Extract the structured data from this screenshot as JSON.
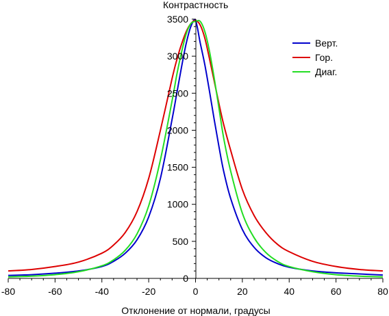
{
  "chart_data": {
    "type": "line",
    "title": "",
    "xlabel": "Отклонение от нормали, градусы",
    "ylabel": "Контрастность",
    "xlim": [
      -80,
      80
    ],
    "ylim": [
      0,
      3500
    ],
    "xticks": [
      "-80",
      "-60",
      "-40",
      "-20",
      "0",
      "20",
      "40",
      "60",
      "80"
    ],
    "yticks": [
      "0",
      "500",
      "1000",
      "1500",
      "2000",
      "2500",
      "3000",
      "3500"
    ],
    "grid": false,
    "legend": "top-right",
    "series": [
      {
        "name": "Верт.",
        "color": "#0000cc",
        "x": [
          -80,
          -70,
          -60,
          -50,
          -40,
          -35,
          -30,
          -25,
          -20,
          -15,
          -10,
          -8,
          -6,
          -4,
          -2,
          0,
          2,
          4,
          6,
          8,
          10,
          12,
          15,
          20,
          25,
          30,
          35,
          40,
          50,
          60,
          70,
          80
        ],
        "y": [
          40,
          50,
          70,
          100,
          160,
          230,
          340,
          520,
          830,
          1350,
          2150,
          2500,
          2850,
          3170,
          3400,
          3480,
          3180,
          2880,
          2520,
          2140,
          1780,
          1450,
          1080,
          660,
          420,
          280,
          200,
          150,
          100,
          75,
          60,
          45
        ]
      },
      {
        "name": "Гор.",
        "color": "#dd0000",
        "x": [
          -80,
          -70,
          -60,
          -50,
          -40,
          -35,
          -30,
          -25,
          -20,
          -15,
          -10,
          -8,
          -6,
          -4,
          -2,
          0,
          2,
          4,
          6,
          8,
          10,
          12,
          15,
          20,
          25,
          30,
          35,
          40,
          50,
          60,
          70,
          80
        ],
        "y": [
          100,
          120,
          160,
          220,
          340,
          450,
          620,
          900,
          1350,
          2000,
          2700,
          2950,
          3160,
          3330,
          3440,
          3480,
          3420,
          3240,
          2960,
          2660,
          2360,
          2080,
          1730,
          1200,
          850,
          620,
          460,
          360,
          230,
          160,
          120,
          100
        ]
      },
      {
        "name": "Диаг.",
        "color": "#22dd22",
        "x": [
          -80,
          -70,
          -60,
          -50,
          -40,
          -35,
          -30,
          -25,
          -20,
          -15,
          -10,
          -8,
          -6,
          -4,
          -2,
          0,
          2,
          4,
          6,
          8,
          10,
          12,
          15,
          20,
          25,
          30,
          35,
          40,
          50,
          60,
          70,
          80
        ],
        "y": [
          20,
          30,
          50,
          90,
          170,
          250,
          380,
          600,
          980,
          1600,
          2400,
          2750,
          3050,
          3300,
          3440,
          3470,
          3470,
          3330,
          3060,
          2700,
          2300,
          1900,
          1450,
          880,
          550,
          350,
          230,
          160,
          90,
          50,
          30,
          20
        ]
      }
    ]
  }
}
